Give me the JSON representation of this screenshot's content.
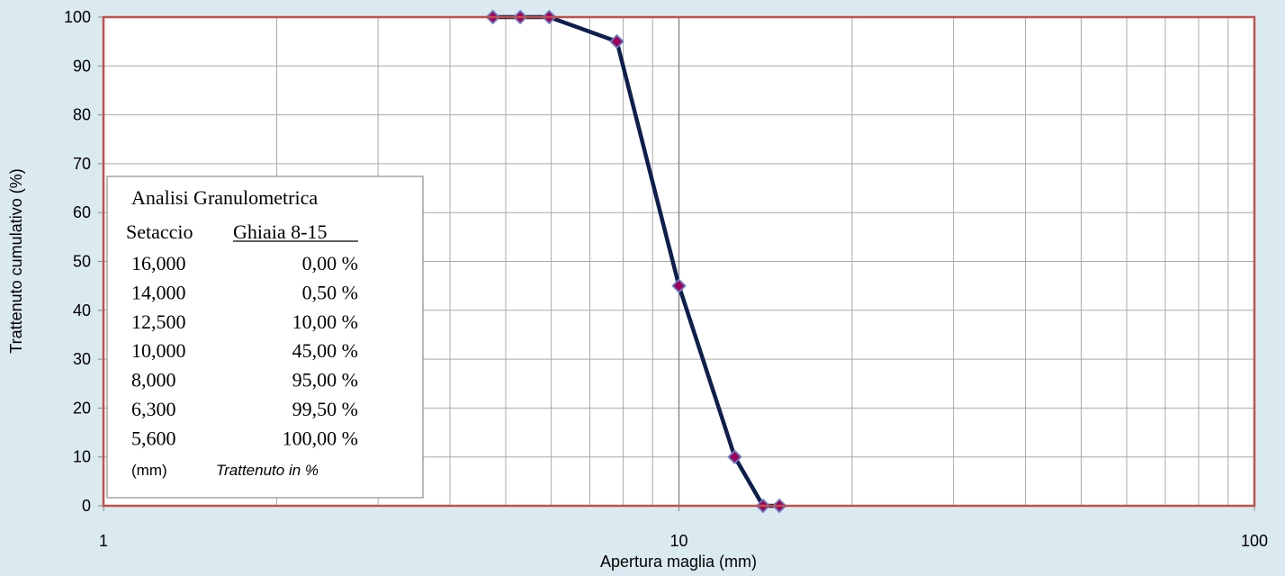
{
  "chart_data": {
    "type": "line",
    "x_scale": "log",
    "xlabel": "Apertura maglia  (mm)",
    "ylabel": "Trattenuto cumulativo (%)",
    "xlim": [
      1,
      100
    ],
    "ylim": [
      0,
      100
    ],
    "x_ticks": [
      "1",
      "10",
      "100"
    ],
    "y_ticks": [
      "0",
      "10",
      "20",
      "30",
      "40",
      "50",
      "60",
      "70",
      "80",
      "90",
      "100"
    ],
    "grid": true,
    "series": [
      {
        "x": [
          4.75,
          5.3,
          5.95,
          7.8,
          10.0,
          12.5,
          14.0,
          14.95
        ],
        "y": [
          100,
          100,
          100,
          95,
          45,
          10,
          0,
          0
        ],
        "line_color": "#0d1f4e",
        "marker_color": "#a0005a",
        "marker_edge_color": "#6a7fc4"
      }
    ],
    "colors": {
      "plot_border": "#c0504d",
      "background": "#dbeaf1",
      "plot_background": "#ffffff",
      "grid": "#aaaaaa"
    },
    "legend_table": {
      "title": "Analisi Granulometrica",
      "col1_header": "Setaccio",
      "col2_header": "Ghiaia 8-15",
      "rows": [
        {
          "sieve": "16,000",
          "value": "0,00 %"
        },
        {
          "sieve": "14,000",
          "value": "0,50 %"
        },
        {
          "sieve": "12,500",
          "value": "10,00 %"
        },
        {
          "sieve": "10,000",
          "value": "45,00 %"
        },
        {
          "sieve": "8,000",
          "value": "95,00 %"
        },
        {
          "sieve": "6,300",
          "value": "99,50 %"
        },
        {
          "sieve": "5,600",
          "value": "100,00 %"
        }
      ],
      "unit": "(mm)",
      "footer": "Trattenuto in %"
    }
  }
}
